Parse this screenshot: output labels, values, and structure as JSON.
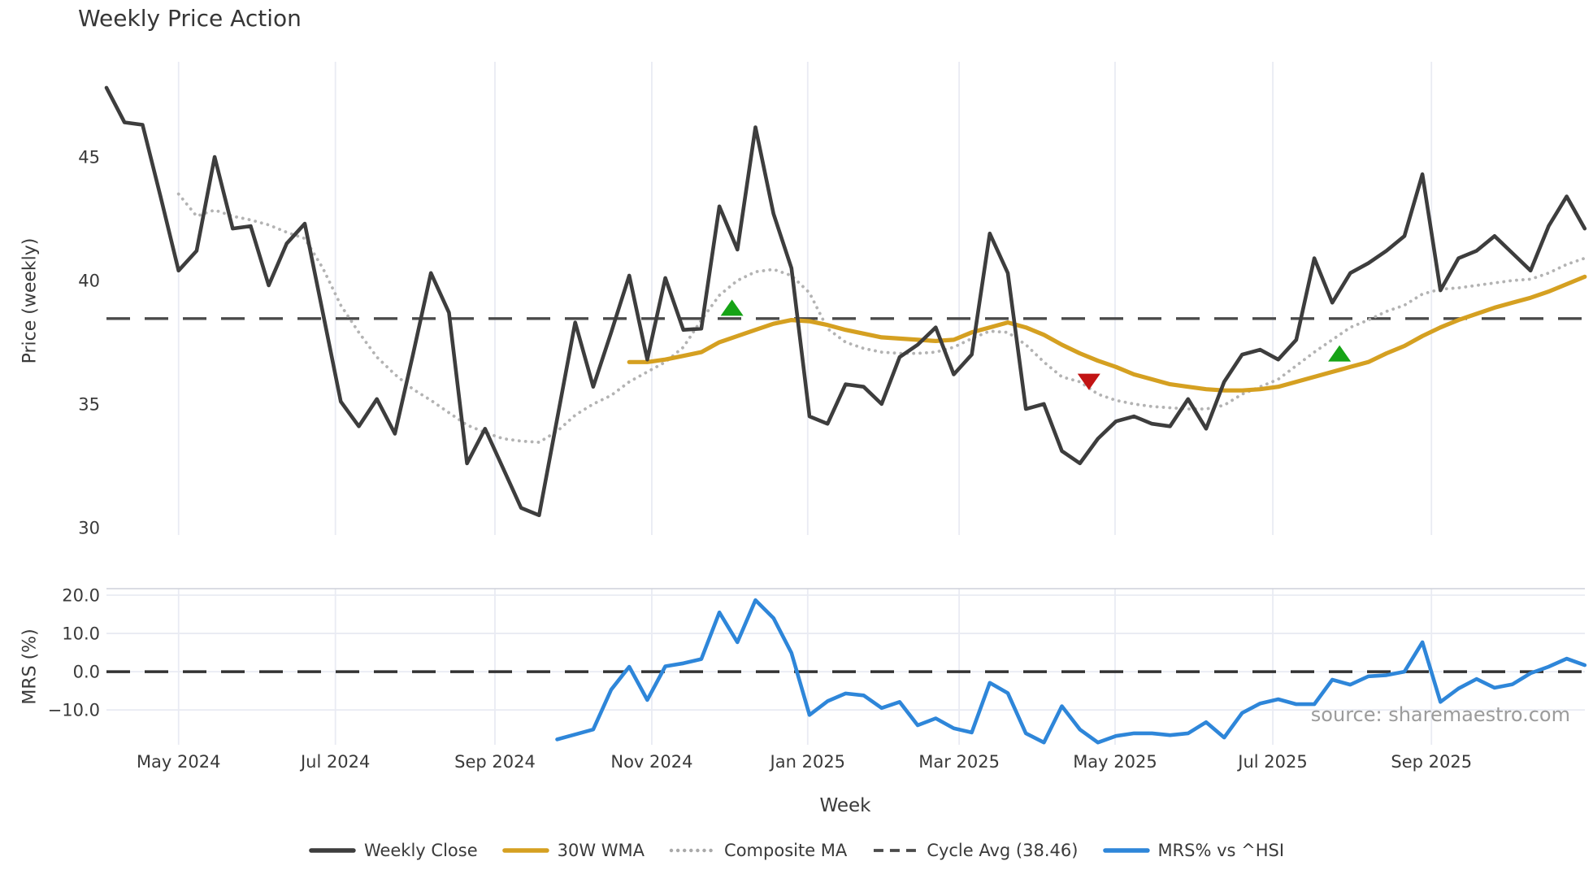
{
  "title": "Weekly Price Action",
  "xlabel": "Week",
  "source": "source: sharemaestro.com",
  "colors": {
    "weekly_close": "#3d3d3d",
    "wma30": "#d5a021",
    "composite_ma": "#b3b3b3",
    "cycle_avg": "#4a4a4a",
    "mrs": "#2e86d9",
    "buy_marker": "#16a316",
    "sell_marker": "#c21414",
    "grid": "#e9ebf3",
    "tick_text": "#3a3a3a"
  },
  "legend": {
    "items": [
      {
        "label": "Weekly Close",
        "swatch": "solid",
        "color": "#3d3d3d"
      },
      {
        "label": "30W WMA",
        "swatch": "solid",
        "color": "#d5a021"
      },
      {
        "label": "Composite MA",
        "swatch": "dotted",
        "color": "#a9a9a9"
      },
      {
        "label": "Cycle Avg (38.46)",
        "swatch": "dashed",
        "color": "#4a4a4a"
      },
      {
        "label": "MRS% vs ^HSI",
        "swatch": "solid",
        "color": "#2e86d9"
      }
    ]
  },
  "chart_data": {
    "type": "line",
    "title": "Weekly Price Action",
    "x_axis": {
      "label": "Week",
      "tick_labels": [
        "May 2024",
        "Jul 2024",
        "Sep 2024",
        "Nov 2024",
        "Jan 2025",
        "Mar 2025",
        "May 2025",
        "Jul 2025",
        "Sep 2025"
      ],
      "tick_weeks": [
        4.0,
        12.7,
        21.55,
        30.25,
        38.9,
        47.3,
        55.95,
        64.7,
        73.5
      ],
      "total_weeks": 83
    },
    "panels": [
      {
        "name": "price",
        "ylabel": "Price (weekly)",
        "ylim": [
          29.7,
          48.85
        ],
        "yticks": [
          {
            "label": "45",
            "v": 45
          },
          {
            "label": "40",
            "v": 40
          },
          {
            "label": "35",
            "v": 35
          },
          {
            "label": "30",
            "v": 30
          }
        ],
        "grid": "vertical",
        "hline": {
          "label": "Cycle Avg (38.46)",
          "value": 38.46,
          "style": "dashed",
          "color": "#4a4a4a"
        },
        "series": [
          {
            "name": "Composite MA",
            "style": "dotted",
            "color": "#b3b3b3",
            "width": 3.8,
            "start_week": 4,
            "values": [
              43.5,
              42.6,
              42.85,
              42.6,
              42.45,
              42.25,
              41.95,
              41.7,
              40.5,
              39.0,
              37.9,
              36.9,
              36.2,
              35.6,
              35.15,
              34.65,
              34.15,
              33.85,
              33.6,
              33.5,
              33.45,
              33.9,
              34.55,
              35.0,
              35.35,
              35.9,
              36.3,
              36.7,
              37.3,
              38.4,
              39.4,
              40.0,
              40.35,
              40.45,
              40.2,
              39.5,
              38.05,
              37.5,
              37.25,
              37.1,
              37.05,
              37.05,
              37.1,
              37.3,
              37.65,
              37.95,
              37.9,
              37.4,
              36.7,
              36.1,
              35.9,
              35.4,
              35.15,
              35.0,
              34.9,
              34.85,
              34.8,
              34.8,
              34.95,
              35.4,
              35.7,
              36.0,
              36.55,
              37.1,
              37.6,
              38.1,
              38.4,
              38.75,
              39.0,
              39.45,
              39.65,
              39.7,
              39.8,
              39.9,
              40.0,
              40.05,
              40.3,
              40.65,
              40.9
            ]
          },
          {
            "name": "30W WMA",
            "style": "solid",
            "color": "#d5a021",
            "width": 5.2,
            "start_week": 29,
            "values": [
              36.7,
              36.7,
              36.8,
              36.95,
              37.1,
              37.5,
              37.75,
              38.0,
              38.25,
              38.4,
              38.35,
              38.2,
              38.0,
              37.85,
              37.7,
              37.65,
              37.6,
              37.55,
              37.6,
              37.9,
              38.1,
              38.3,
              38.1,
              37.8,
              37.4,
              37.05,
              36.75,
              36.5,
              36.2,
              36.0,
              35.8,
              35.7,
              35.6,
              35.55,
              35.55,
              35.6,
              35.7,
              35.9,
              36.1,
              36.3,
              36.5,
              36.7,
              37.05,
              37.35,
              37.75,
              38.1,
              38.4,
              38.65,
              38.9,
              39.1,
              39.3,
              39.55,
              39.85,
              40.15
            ]
          },
          {
            "name": "Weekly Close",
            "style": "solid",
            "color": "#3d3d3d",
            "width": 4.6,
            "start_week": 0,
            "values": [
              47.8,
              46.4,
              46.3,
              43.4,
              40.4,
              41.2,
              45.0,
              42.1,
              42.2,
              39.8,
              41.5,
              42.3,
              38.7,
              35.1,
              34.1,
              35.2,
              33.8,
              37.0,
              40.3,
              38.7,
              32.6,
              34.0,
              32.4,
              30.8,
              30.5,
              34.4,
              38.3,
              35.7,
              37.9,
              40.2,
              36.8,
              40.1,
              38.0,
              38.05,
              43.0,
              41.25,
              46.2,
              42.7,
              40.5,
              34.5,
              34.2,
              35.8,
              35.7,
              35.0,
              36.9,
              37.4,
              38.1,
              36.2,
              37.0,
              41.9,
              40.3,
              34.8,
              35.0,
              33.1,
              32.6,
              33.6,
              34.3,
              34.5,
              34.2,
              34.1,
              35.2,
              34.0,
              35.9,
              37.0,
              37.2,
              36.8,
              37.6,
              40.9,
              39.1,
              40.3,
              40.7,
              41.2,
              41.8,
              44.3,
              39.6,
              40.9,
              41.2,
              41.8,
              41.1,
              40.4,
              42.2,
              43.4,
              42.1
            ]
          }
        ],
        "markers": [
          {
            "shape": "up",
            "color": "#16a316",
            "week": 34.7,
            "value": 38.9
          },
          {
            "shape": "down",
            "color": "#c21414",
            "week": 54.5,
            "value": 35.9
          },
          {
            "shape": "up",
            "color": "#16a316",
            "week": 68.4,
            "value": 37.05
          }
        ]
      },
      {
        "name": "mrs",
        "ylabel": "MRS (%)",
        "ylim": [
          -19.1,
          21.7
        ],
        "yticks": [
          {
            "label": "20.0",
            "v": 20
          },
          {
            "label": "10.0",
            "v": 10
          },
          {
            "label": "0.0",
            "v": 0
          },
          {
            "label": "−10.0",
            "v": -10
          }
        ],
        "grid": "both",
        "hline": {
          "label": "Zero line",
          "value": 0.0,
          "style": "dashed",
          "color": "#333333"
        },
        "series": [
          {
            "name": "MRS% vs ^HSI",
            "style": "solid",
            "color": "#2e86d9",
            "width": 4.6,
            "start_week": 25,
            "values": [
              -17.7,
              -16.4,
              -15.1,
              -4.7,
              1.3,
              -7.4,
              1.4,
              2.2,
              3.3,
              15.5,
              7.7,
              18.7,
              14.0,
              4.9,
              -11.3,
              -7.7,
              -5.7,
              -6.2,
              -9.5,
              -7.9,
              -14.0,
              -12.2,
              -14.8,
              -15.9,
              -2.9,
              -5.6,
              -16.1,
              -18.5,
              -9.0,
              -15.1,
              -18.5,
              -16.8,
              -16.1,
              -16.1,
              -16.6,
              -16.1,
              -13.2,
              -17.2,
              -10.8,
              -8.3,
              -7.2,
              -8.5,
              -8.5,
              -2.1,
              -3.4,
              -1.2,
              -0.9,
              0.0,
              7.7,
              -7.9,
              -4.4,
              -1.9,
              -4.2,
              -3.3,
              -0.4,
              1.3,
              3.4,
              1.7
            ]
          }
        ]
      }
    ]
  }
}
